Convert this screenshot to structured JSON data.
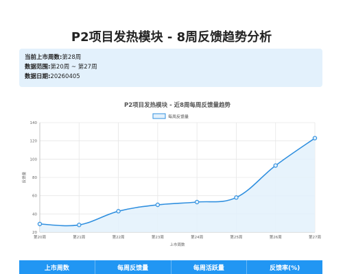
{
  "page_title": "P2项目发热模块 - 8周反馈趋势分析",
  "info": {
    "current_week_label": "当前上市周数:",
    "current_week_value": "第28周",
    "range_label": "数据范围:",
    "range_value": "第20周 ~ 第27周",
    "date_label": "数据日期:",
    "date_value": "20260405"
  },
  "table": {
    "headers": [
      "上市周数",
      "每周反馈量",
      "每周活跃量",
      "反馈率(%)"
    ]
  },
  "colors": {
    "accent": "#2196f3",
    "line": "#2f8fdf",
    "area_fill": "#e3f1fc",
    "info_bg": "#e3f1fc"
  },
  "chart_data": {
    "type": "line",
    "title": "P2项目发热模块 - 近8周每周反馈量趋势",
    "xlabel": "上市周数",
    "ylabel": "反馈量",
    "categories": [
      "第20周",
      "第21周",
      "第22周",
      "第23周",
      "第24周",
      "第25周",
      "第26周",
      "第27周"
    ],
    "series": [
      {
        "name": "每周反馈量",
        "values": [
          29,
          28,
          43,
          50,
          53,
          58,
          93,
          123
        ]
      }
    ],
    "ylim": [
      20,
      140
    ],
    "yticks": [
      20,
      40,
      60,
      80,
      100,
      120,
      140
    ],
    "grid": true,
    "legend": "top-center",
    "area_filled": true
  }
}
